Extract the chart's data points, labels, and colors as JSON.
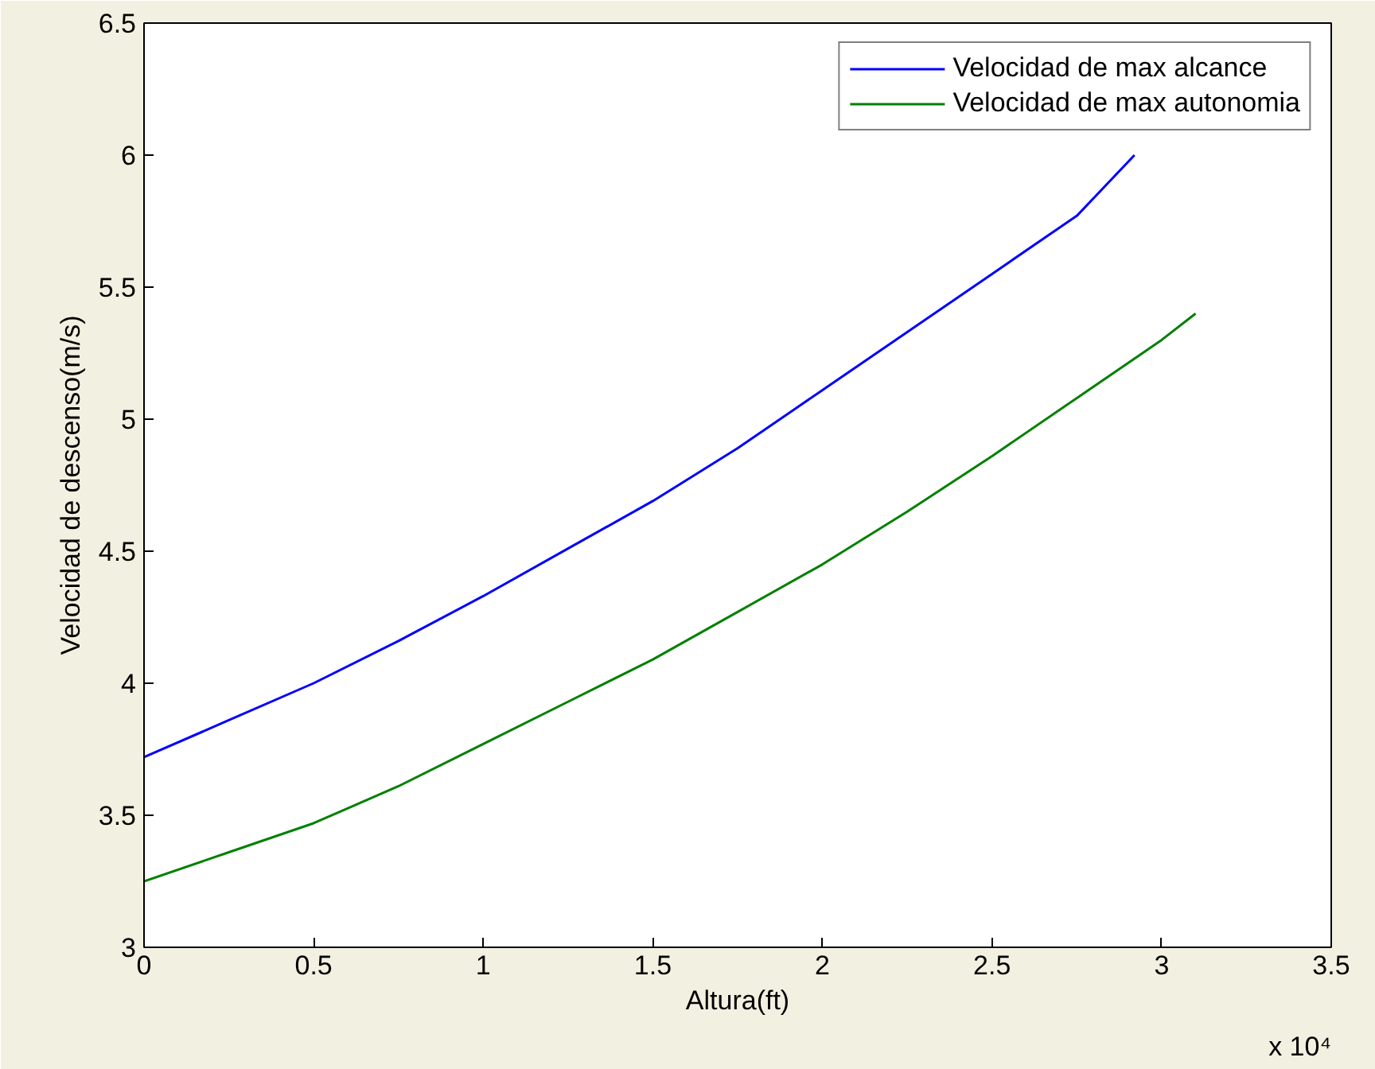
{
  "chart_data": {
    "type": "line",
    "xlabel": "Altura(ft)",
    "ylabel": "Velocidad de descenso(m/s)",
    "annotations": [
      "x 10⁴"
    ],
    "xlim": [
      0,
      3.5
    ],
    "ylim": [
      3,
      6.5
    ],
    "xticks": [
      0,
      0.5,
      1,
      1.5,
      2,
      2.5,
      3,
      3.5
    ],
    "yticks": [
      3,
      3.5,
      4,
      4.5,
      5,
      5.5,
      6,
      6.5
    ],
    "grid": false,
    "legend": "top right",
    "series": [
      {
        "name": "Velocidad de max alcance",
        "color": "#0000ff",
        "x": [
          0,
          0.25,
          0.5,
          0.75,
          1,
          1.25,
          1.5,
          1.75,
          2,
          2.25,
          2.5,
          2.75,
          2.92
        ],
        "values": [
          3.72,
          3.86,
          4.0,
          4.16,
          4.33,
          4.51,
          4.69,
          4.89,
          5.11,
          5.33,
          5.55,
          5.77,
          6.0
        ]
      },
      {
        "name": "Velocidad de max autonomia",
        "color": "#008000",
        "x": [
          0,
          0.25,
          0.5,
          0.75,
          1,
          1.25,
          1.5,
          1.75,
          2,
          2.25,
          2.5,
          2.75,
          3,
          3.1
        ],
        "values": [
          3.25,
          3.36,
          3.47,
          3.61,
          3.77,
          3.93,
          4.09,
          4.27,
          4.45,
          4.65,
          4.86,
          5.08,
          5.3,
          5.4
        ]
      }
    ]
  }
}
